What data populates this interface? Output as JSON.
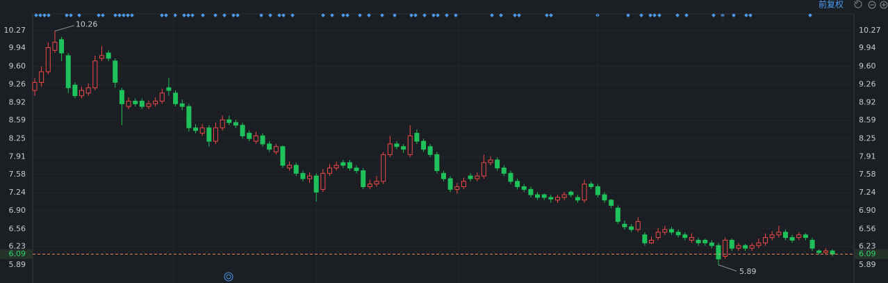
{
  "chart_data": {
    "type": "candlestick",
    "adjust_label": "前复权",
    "up_color": "#f04a4a",
    "down_color": "#1fc25a",
    "ylim": [
      5.55,
      10.58
    ],
    "yticks": [
      10.27,
      9.94,
      {
        "value": 9.6,
        "label": "9.60"
      },
      9.26,
      8.92,
      8.59,
      8.25,
      7.91,
      7.58,
      7.24,
      {
        "value": 6.9,
        "label": "6.90"
      },
      6.56,
      6.23,
      5.89
    ],
    "grid": true,
    "last_price": 6.09,
    "high_label": 10.26,
    "low_label": 5.89,
    "open": [
      9.15,
      9.3,
      9.5,
      9.9,
      10.1,
      9.8,
      9.25,
      9.05,
      9.1,
      9.2,
      9.75,
      9.85,
      9.7,
      9.15,
      8.85,
      8.95,
      8.95,
      8.85,
      8.9,
      8.95,
      9.2,
      9.1,
      8.9,
      8.85,
      8.45,
      8.35,
      8.45,
      8.2,
      8.45,
      8.6,
      8.55,
      8.5,
      8.35,
      8.2,
      8.3,
      8.15,
      8.0,
      8.1,
      7.7,
      7.75,
      7.6,
      7.5,
      7.55,
      7.3,
      7.6,
      7.7,
      7.8,
      7.8,
      7.7,
      7.65,
      7.35,
      7.4,
      7.45,
      7.95,
      8.15,
      8.1,
      7.95,
      8.35,
      8.2,
      8.1,
      7.95,
      7.6,
      7.5,
      7.3,
      7.35,
      7.55,
      7.5,
      7.55,
      7.8,
      7.85,
      7.7,
      7.6,
      7.45,
      7.35,
      7.3,
      7.2,
      7.2,
      7.15,
      7.1,
      7.15,
      7.25,
      7.15,
      7.1,
      7.4,
      7.35,
      7.2,
      7.1,
      6.95,
      6.65,
      6.6,
      6.55,
      6.45,
      6.3,
      6.4,
      6.5,
      6.55,
      6.5,
      6.45,
      6.35,
      6.35,
      6.35,
      6.3,
      6.25,
      6.05,
      6.35,
      6.2,
      6.25,
      6.2,
      6.25,
      6.3,
      6.4,
      6.45,
      6.5,
      6.4,
      6.4,
      6.45,
      6.35,
      6.15,
      6.12,
      6.15
    ],
    "high": [
      9.38,
      9.6,
      10.05,
      10.26,
      10.15,
      9.85,
      9.3,
      9.22,
      9.28,
      9.8,
      9.98,
      9.9,
      9.75,
      9.2,
      9.02,
      9.0,
      9.0,
      8.96,
      9.02,
      9.18,
      9.38,
      9.15,
      8.98,
      8.9,
      8.52,
      8.52,
      8.5,
      8.55,
      8.68,
      8.68,
      8.6,
      8.55,
      8.4,
      8.38,
      8.35,
      8.2,
      8.15,
      8.12,
      7.82,
      7.8,
      7.65,
      7.62,
      7.6,
      7.68,
      7.78,
      7.82,
      7.85,
      7.85,
      7.75,
      7.7,
      7.48,
      7.55,
      8.0,
      8.3,
      8.2,
      8.15,
      8.5,
      8.42,
      8.25,
      8.15,
      8.0,
      7.65,
      7.55,
      7.42,
      7.52,
      7.6,
      7.62,
      7.95,
      7.92,
      7.9,
      7.75,
      7.65,
      7.5,
      7.4,
      7.35,
      7.25,
      7.22,
      7.2,
      7.2,
      7.25,
      7.28,
      7.2,
      7.48,
      7.45,
      7.4,
      7.25,
      7.12,
      7.0,
      6.72,
      6.65,
      6.78,
      6.5,
      6.42,
      6.58,
      6.62,
      6.6,
      6.55,
      6.5,
      6.48,
      6.4,
      6.38,
      6.35,
      6.3,
      6.4,
      6.38,
      6.3,
      6.28,
      6.3,
      6.38,
      6.48,
      6.52,
      6.62,
      6.55,
      6.45,
      6.5,
      6.48,
      6.4,
      6.18,
      6.2,
      6.18
    ],
    "low": [
      9.05,
      9.22,
      9.45,
      9.85,
      9.7,
      9.1,
      9.0,
      9.0,
      9.05,
      9.15,
      9.7,
      9.7,
      9.2,
      8.5,
      8.8,
      8.85,
      8.8,
      8.8,
      8.85,
      8.9,
      9.05,
      8.85,
      8.78,
      8.38,
      8.35,
      8.3,
      8.1,
      8.15,
      8.4,
      8.5,
      8.45,
      8.25,
      8.2,
      8.15,
      8.1,
      8.0,
      7.95,
      7.7,
      7.65,
      7.55,
      7.45,
      7.42,
      7.07,
      7.25,
      7.55,
      7.65,
      7.7,
      7.65,
      7.6,
      7.3,
      7.3,
      7.35,
      7.4,
      7.9,
      8.05,
      7.98,
      7.9,
      8.15,
      8.0,
      7.9,
      7.6,
      7.45,
      7.25,
      7.22,
      7.3,
      7.45,
      7.45,
      7.5,
      7.75,
      7.65,
      7.55,
      7.4,
      7.3,
      7.25,
      7.15,
      7.1,
      7.1,
      7.05,
      7.05,
      7.1,
      7.15,
      7.05,
      7.05,
      7.3,
      7.15,
      7.05,
      6.95,
      6.65,
      6.55,
      6.5,
      6.5,
      6.25,
      6.28,
      6.35,
      6.45,
      6.45,
      6.4,
      6.35,
      6.3,
      6.25,
      6.25,
      6.2,
      5.89,
      6.0,
      6.15,
      6.15,
      6.15,
      6.15,
      6.2,
      6.25,
      6.35,
      6.4,
      6.35,
      6.3,
      6.35,
      6.35,
      6.15,
      6.08,
      6.08,
      6.05
    ],
    "close": [
      9.3,
      9.5,
      9.95,
      10.05,
      9.85,
      9.2,
      9.05,
      9.15,
      9.2,
      9.7,
      9.8,
      9.75,
      9.3,
      8.9,
      8.95,
      8.9,
      8.85,
      8.9,
      8.95,
      9.1,
      9.15,
      8.9,
      8.85,
      8.45,
      8.4,
      8.45,
      8.2,
      8.45,
      8.6,
      8.55,
      8.5,
      8.3,
      8.25,
      8.3,
      8.15,
      8.05,
      8.1,
      7.75,
      7.75,
      7.6,
      7.5,
      7.55,
      7.25,
      7.6,
      7.7,
      7.75,
      7.75,
      7.7,
      7.65,
      7.35,
      7.4,
      7.45,
      7.95,
      8.15,
      8.1,
      8.05,
      8.3,
      8.2,
      8.05,
      7.95,
      7.65,
      7.5,
      7.3,
      7.35,
      7.45,
      7.5,
      7.55,
      7.8,
      7.85,
      7.7,
      7.6,
      7.45,
      7.35,
      7.3,
      7.2,
      7.15,
      7.15,
      7.12,
      7.15,
      7.2,
      7.2,
      7.1,
      7.4,
      7.35,
      7.2,
      7.1,
      7.0,
      6.7,
      6.6,
      6.55,
      6.7,
      6.3,
      6.35,
      6.5,
      6.55,
      6.5,
      6.45,
      6.4,
      6.4,
      6.3,
      6.3,
      6.25,
      6.0,
      6.35,
      6.2,
      6.25,
      6.2,
      6.25,
      6.3,
      6.4,
      6.45,
      6.5,
      6.4,
      6.35,
      6.45,
      6.4,
      6.2,
      6.12,
      6.15,
      6.09
    ]
  }
}
